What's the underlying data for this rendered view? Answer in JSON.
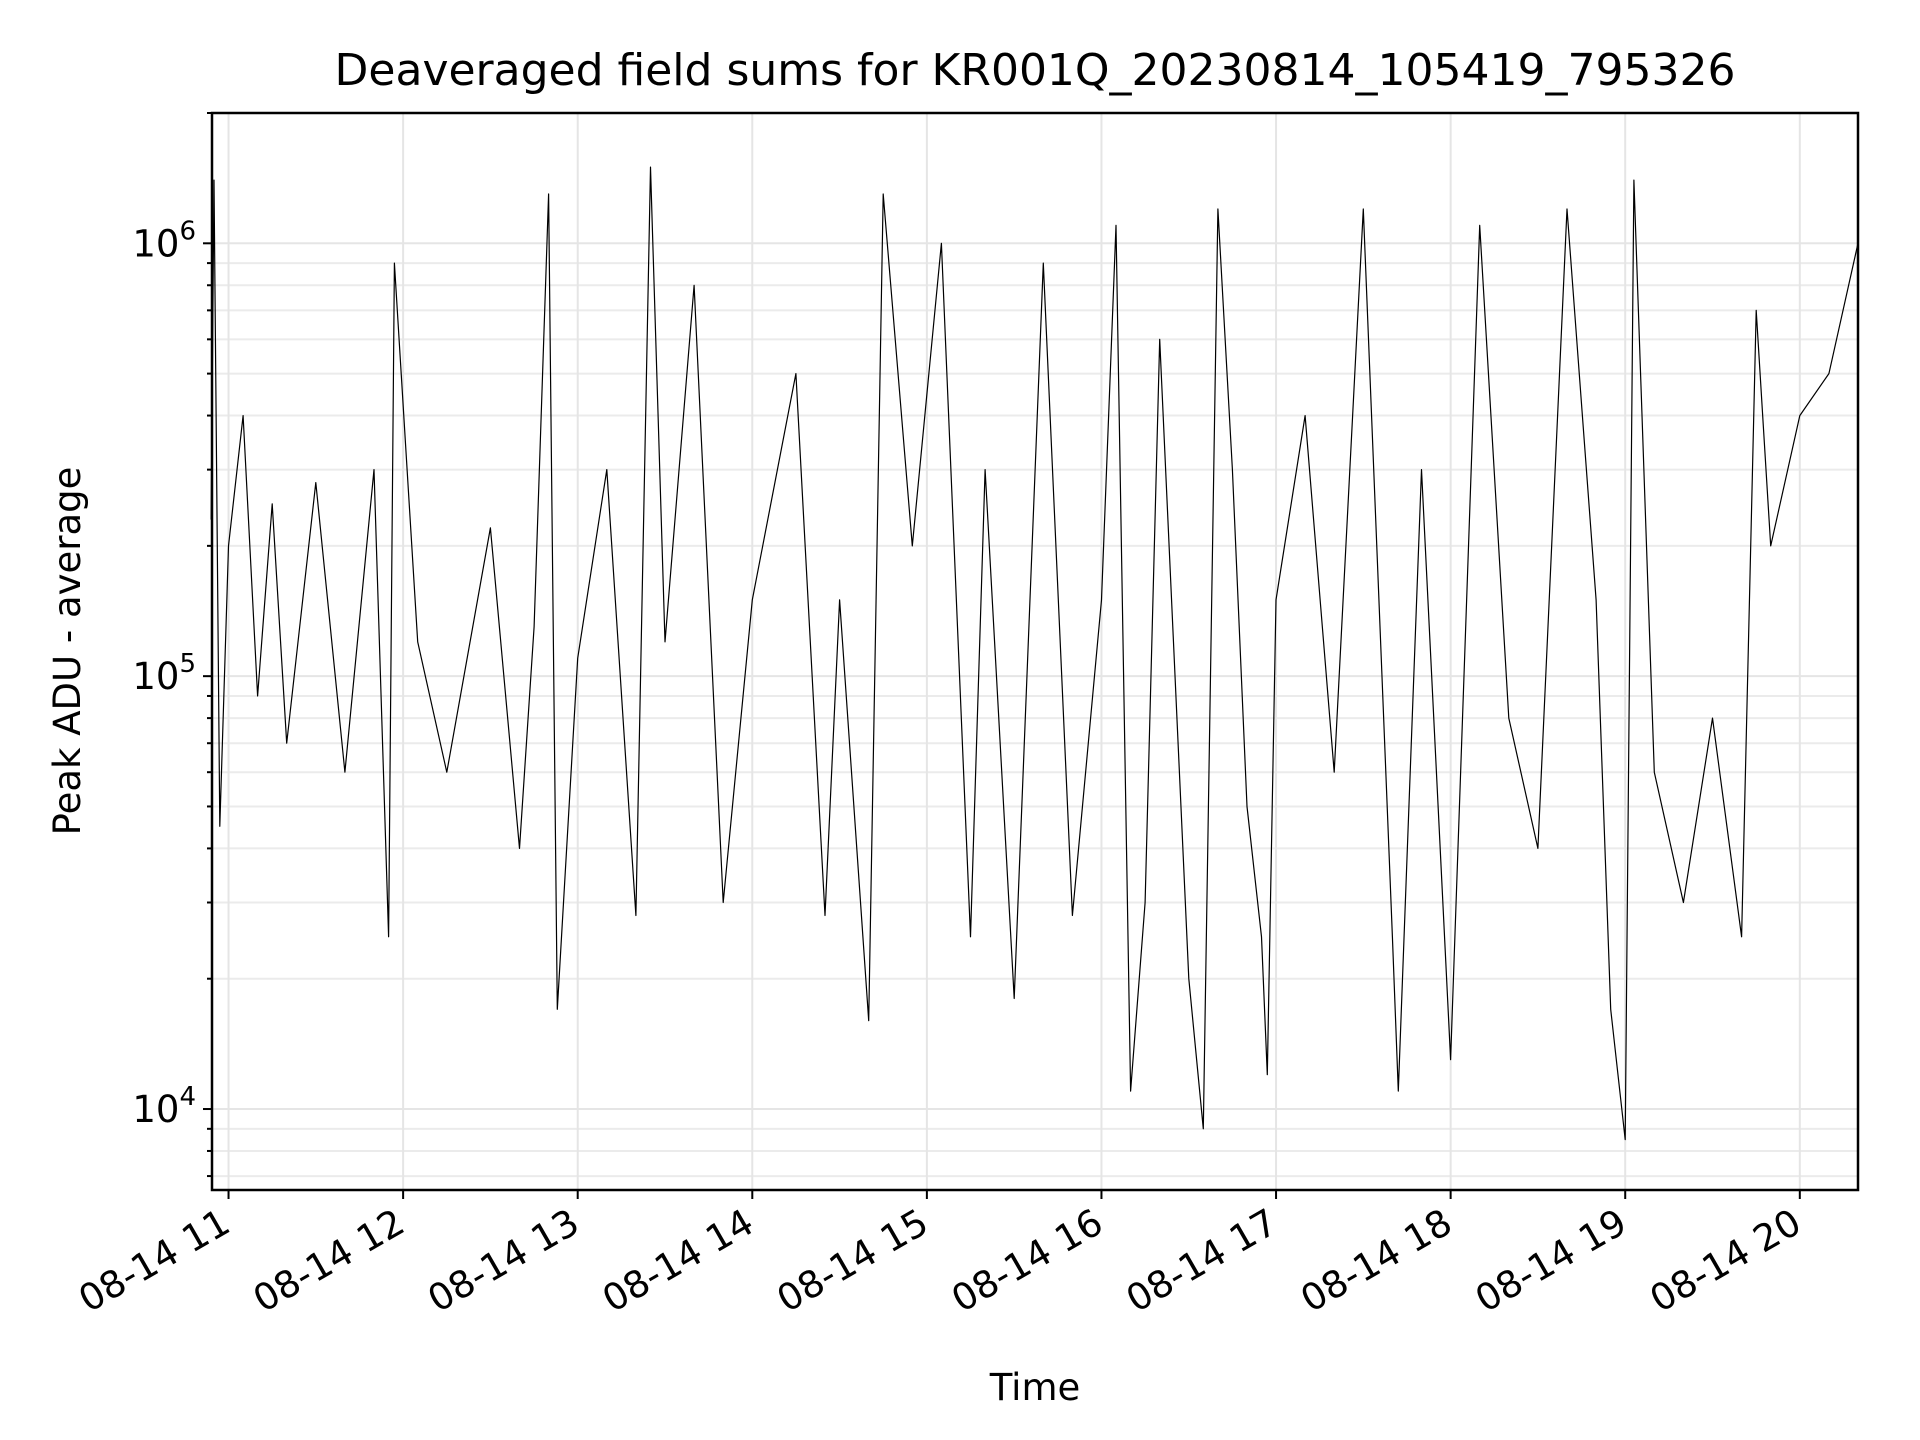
{
  "chart_data": {
    "type": "line",
    "title": "Deaveraged field sums for KR001Q_20230814_105419_795326",
    "xlabel": "Time",
    "ylabel": "Peak ADU - average",
    "yscale": "log",
    "grid": true,
    "x_range": [
      "2023-08-14 10:54:19",
      "2023-08-14 20:20:00"
    ],
    "ylim": [
      6500,
      2000000
    ],
    "x_ticks": [
      {
        "t": "2023-08-14 11:00",
        "label": "08-14 11"
      },
      {
        "t": "2023-08-14 12:00",
        "label": "08-14 12"
      },
      {
        "t": "2023-08-14 13:00",
        "label": "08-14 13"
      },
      {
        "t": "2023-08-14 14:00",
        "label": "08-14 14"
      },
      {
        "t": "2023-08-14 15:00",
        "label": "08-14 15"
      },
      {
        "t": "2023-08-14 16:00",
        "label": "08-14 16"
      },
      {
        "t": "2023-08-14 17:00",
        "label": "08-14 17"
      },
      {
        "t": "2023-08-14 18:00",
        "label": "08-14 18"
      },
      {
        "t": "2023-08-14 19:00",
        "label": "08-14 19"
      },
      {
        "t": "2023-08-14 20:00",
        "label": "08-14 20"
      }
    ],
    "y_ticks": [
      {
        "value": 10000,
        "base": "10",
        "exp": "4"
      },
      {
        "value": 100000,
        "base": "10",
        "exp": "5"
      },
      {
        "value": 1000000,
        "base": "10",
        "exp": "6"
      }
    ],
    "series": [
      {
        "color": "#000000",
        "points": [
          [
            "2023-08-14 10:54",
            230000
          ],
          [
            "2023-08-14 10:55",
            1400000
          ],
          [
            "2023-08-14 10:57",
            45000
          ],
          [
            "2023-08-14 11:00",
            200000
          ],
          [
            "2023-08-14 11:05",
            400000
          ],
          [
            "2023-08-14 11:10",
            90000
          ],
          [
            "2023-08-14 11:15",
            250000
          ],
          [
            "2023-08-14 11:20",
            70000
          ],
          [
            "2023-08-14 11:30",
            280000
          ],
          [
            "2023-08-14 11:40",
            60000
          ],
          [
            "2023-08-14 11:50",
            300000
          ],
          [
            "2023-08-14 11:55",
            25000
          ],
          [
            "2023-08-14 11:57",
            900000
          ],
          [
            "2023-08-14 12:05",
            120000
          ],
          [
            "2023-08-14 12:15",
            60000
          ],
          [
            "2023-08-14 12:30",
            220000
          ],
          [
            "2023-08-14 12:40",
            40000
          ],
          [
            "2023-08-14 12:45",
            130000
          ],
          [
            "2023-08-14 12:50",
            1300000
          ],
          [
            "2023-08-14 12:53",
            17000
          ],
          [
            "2023-08-14 13:00",
            110000
          ],
          [
            "2023-08-14 13:10",
            300000
          ],
          [
            "2023-08-14 13:20",
            28000
          ],
          [
            "2023-08-14 13:25",
            1500000
          ],
          [
            "2023-08-14 13:30",
            120000
          ],
          [
            "2023-08-14 13:40",
            800000
          ],
          [
            "2023-08-14 13:50",
            30000
          ],
          [
            "2023-08-14 14:00",
            150000
          ],
          [
            "2023-08-14 14:15",
            500000
          ],
          [
            "2023-08-14 14:25",
            28000
          ],
          [
            "2023-08-14 14:30",
            150000
          ],
          [
            "2023-08-14 14:40",
            16000
          ],
          [
            "2023-08-14 14:45",
            1300000
          ],
          [
            "2023-08-14 14:55",
            200000
          ],
          [
            "2023-08-14 15:05",
            1000000
          ],
          [
            "2023-08-14 15:15",
            25000
          ],
          [
            "2023-08-14 15:20",
            300000
          ],
          [
            "2023-08-14 15:30",
            18000
          ],
          [
            "2023-08-14 15:40",
            900000
          ],
          [
            "2023-08-14 15:50",
            28000
          ],
          [
            "2023-08-14 16:00",
            150000
          ],
          [
            "2023-08-14 16:05",
            1100000
          ],
          [
            "2023-08-14 16:10",
            11000
          ],
          [
            "2023-08-14 16:15",
            30000
          ],
          [
            "2023-08-14 16:20",
            600000
          ],
          [
            "2023-08-14 16:30",
            20000
          ],
          [
            "2023-08-14 16:35",
            9000
          ],
          [
            "2023-08-14 16:40",
            1200000
          ],
          [
            "2023-08-14 16:45",
            300000
          ],
          [
            "2023-08-14 16:50",
            50000
          ],
          [
            "2023-08-14 16:55",
            25000
          ],
          [
            "2023-08-14 16:57",
            12000
          ],
          [
            "2023-08-14 17:00",
            150000
          ],
          [
            "2023-08-14 17:10",
            400000
          ],
          [
            "2023-08-14 17:20",
            60000
          ],
          [
            "2023-08-14 17:30",
            1200000
          ],
          [
            "2023-08-14 17:40",
            25000
          ],
          [
            "2023-08-14 17:42",
            11000
          ],
          [
            "2023-08-14 17:50",
            300000
          ],
          [
            "2023-08-14 18:00",
            13000
          ],
          [
            "2023-08-14 18:10",
            1100000
          ],
          [
            "2023-08-14 18:20",
            80000
          ],
          [
            "2023-08-14 18:30",
            40000
          ],
          [
            "2023-08-14 18:40",
            1200000
          ],
          [
            "2023-08-14 18:50",
            150000
          ],
          [
            "2023-08-14 18:55",
            17000
          ],
          [
            "2023-08-14 19:00",
            8500
          ],
          [
            "2023-08-14 19:03",
            1400000
          ],
          [
            "2023-08-14 19:10",
            60000
          ],
          [
            "2023-08-14 19:20",
            30000
          ],
          [
            "2023-08-14 19:30",
            80000
          ],
          [
            "2023-08-14 19:40",
            25000
          ],
          [
            "2023-08-14 19:45",
            700000
          ],
          [
            "2023-08-14 19:50",
            200000
          ],
          [
            "2023-08-14 20:00",
            400000
          ],
          [
            "2023-08-14 20:10",
            500000
          ],
          [
            "2023-08-14 20:20",
            1000000
          ]
        ]
      }
    ]
  }
}
